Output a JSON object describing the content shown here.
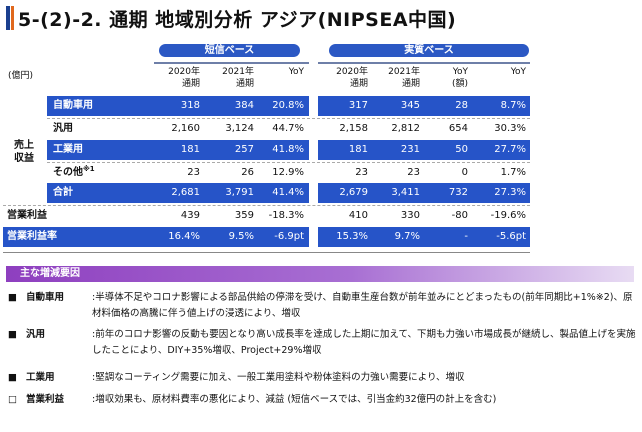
{
  "title": "5-(2)-2. 通期 地域別分析 アジア(NIPSEA中国)",
  "unit": "(億円)",
  "sections": {
    "left": "短信ベース",
    "right": "実質ベース"
  },
  "columns": {
    "c1a": "2020年",
    "c1b": "通期",
    "c2a": "2021年",
    "c2b": "通期",
    "c3a": "YoY",
    "c3b": "",
    "c4a": "2020年",
    "c4b": "通期",
    "c5a": "2021年",
    "c5b": "通期",
    "c6a": "YoY",
    "c6b": "(額)",
    "c7a": "YoY",
    "c7b": ""
  },
  "side_label": "売上\n収益",
  "rows": [
    {
      "label": "自動車用",
      "sup": "",
      "v": [
        "318",
        "384",
        "20.8%",
        "317",
        "345",
        "28",
        "8.7%"
      ]
    },
    {
      "label": "汎用",
      "sup": "",
      "v": [
        "2,160",
        "3,124",
        "44.7%",
        "2,158",
        "2,812",
        "654",
        "30.3%"
      ]
    },
    {
      "label": "工業用",
      "sup": "",
      "v": [
        "181",
        "257",
        "41.8%",
        "181",
        "231",
        "50",
        "27.7%"
      ]
    },
    {
      "label": "その他",
      "sup": "※1",
      "v": [
        "23",
        "26",
        "12.9%",
        "23",
        "23",
        "0",
        "1.7%"
      ]
    },
    {
      "label": "合計",
      "sup": "",
      "v": [
        "2,681",
        "3,791",
        "41.4%",
        "2,679",
        "3,411",
        "732",
        "27.3%"
      ]
    },
    {
      "label": "営業利益",
      "sup": "",
      "v": [
        "439",
        "359",
        "-18.3%",
        "410",
        "330",
        "-80",
        "-19.6%"
      ]
    },
    {
      "label": "営業利益率",
      "sup": "",
      "v": [
        "16.4%",
        "9.5%",
        "-6.9pt",
        "15.3%",
        "9.7%",
        "-",
        "-5.6pt"
      ]
    }
  ],
  "factors": {
    "heading": "主な増減要因",
    "items": [
      {
        "bullet": "■",
        "category": "自動車用",
        "text": ":半導体不足やコロナ影響による部品供給の停滞を受け、自動車生産台数が前年並みにとどまったもの(前年同期比+1%※2)、原材料価格の高騰に伴う値上げの浸透により、増収"
      },
      {
        "bullet": "■",
        "category": "汎用",
        "text": ":前年のコロナ影響の反動も要因となり高い成長率を達成した上期に加えて、下期も力強い市場成長が継続し、製品値上げを実施したことにより、DIY+35%増収、Project+29%増収"
      },
      {
        "bullet": "■",
        "category": "工業用",
        "text": ":堅調なコーティング需要に加え、一般工業用塗料や粉体塗料の力強い需要により、増収"
      },
      {
        "bullet": "□",
        "category": "営業利益",
        "text": ":増収効果も、原材料費率の悪化により、減益 (短信ベースでは、引当金約32億円の計上を含む)"
      }
    ]
  },
  "colors": {
    "accent": "#2654c8",
    "factor_band": "#8e3fbf"
  }
}
